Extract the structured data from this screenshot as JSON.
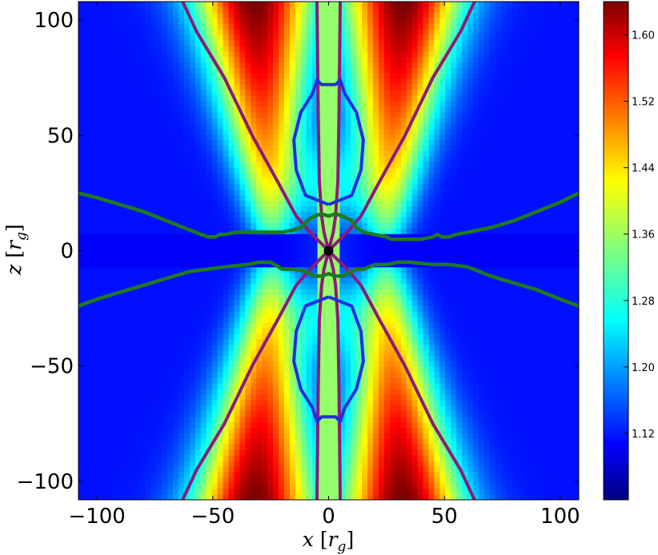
{
  "chart_data": {
    "type": "heatmap",
    "title": "",
    "xlabel": "x [r_g]",
    "ylabel": "z [r_g]",
    "xlabel_main": "x",
    "xlabel_unit": "r",
    "xlabel_sub": "g",
    "ylabel_main": "z",
    "ylabel_unit": "r",
    "ylabel_sub": "g",
    "xlim": [
      -108,
      108
    ],
    "ylim": [
      -108,
      108
    ],
    "x_ticks": [
      -100,
      -50,
      0,
      50,
      100
    ],
    "y_ticks": [
      -100,
      -50,
      0,
      50,
      100
    ],
    "x_tick_labels": [
      "−100",
      "−50",
      "0",
      "50",
      "100"
    ],
    "y_tick_labels": [
      "−100",
      "−50",
      "0",
      "50",
      "100"
    ],
    "colormap": "jet",
    "colorbar": {
      "range": [
        1.04,
        1.64
      ],
      "ticks": [
        1.12,
        1.2,
        1.28,
        1.36,
        1.44,
        1.52,
        1.6
      ],
      "tick_labels": [
        "1.12",
        "1.20",
        "1.28",
        "1.36",
        "1.44",
        "1.52",
        "1.60"
      ]
    },
    "grid": false,
    "black_hole": {
      "x": 0,
      "z": 0
    },
    "colors": {
      "purple_contours": "#8b1c7a",
      "blue_contour": "#1f2fe0",
      "green_contour": "#1e7a1e",
      "black_hole": "#000000"
    },
    "contours": {
      "purple_inner_right": [
        [
          0,
          0
        ],
        [
          2,
          8
        ],
        [
          3,
          15
        ],
        [
          4,
          30
        ],
        [
          4.5,
          60
        ],
        [
          5,
          108
        ]
      ],
      "purple_outer_right": [
        [
          0,
          0
        ],
        [
          3,
          3
        ],
        [
          8,
          8
        ],
        [
          14,
          15
        ],
        [
          22,
          30
        ],
        [
          33,
          50
        ],
        [
          45,
          75
        ],
        [
          57,
          95
        ],
        [
          63,
          108
        ]
      ],
      "blue_lobe_right": [
        [
          0,
          20
        ],
        [
          10,
          24
        ],
        [
          14,
          35
        ],
        [
          15,
          48
        ],
        [
          12,
          60
        ],
        [
          7,
          68
        ],
        [
          5,
          74
        ],
        [
          3,
          72
        ],
        [
          0,
          72
        ]
      ],
      "green_upper_right": [
        [
          0,
          15
        ],
        [
          3,
          16
        ],
        [
          6,
          15
        ],
        [
          8,
          14
        ],
        [
          10,
          13
        ],
        [
          12,
          10
        ],
        [
          15,
          8
        ],
        [
          20,
          7
        ],
        [
          25,
          6
        ],
        [
          27,
          5
        ],
        [
          30,
          5
        ],
        [
          35,
          5
        ],
        [
          40,
          5
        ],
        [
          45,
          6
        ],
        [
          47,
          7
        ],
        [
          49,
          6
        ],
        [
          52,
          6
        ],
        [
          55,
          7
        ],
        [
          60,
          8
        ],
        [
          65,
          9
        ],
        [
          70,
          10
        ],
        [
          80,
          13
        ],
        [
          90,
          17
        ],
        [
          100,
          21
        ],
        [
          108,
          25
        ]
      ],
      "green_upper_left": [
        [
          0,
          15
        ],
        [
          -3,
          16
        ],
        [
          -6,
          15
        ],
        [
          -8,
          14
        ],
        [
          -10,
          12
        ],
        [
          -12,
          10
        ],
        [
          -15,
          9
        ],
        [
          -20,
          8
        ],
        [
          -25,
          8
        ],
        [
          -30,
          8
        ],
        [
          -35,
          8
        ],
        [
          -40,
          8
        ],
        [
          -45,
          7
        ],
        [
          -47,
          7
        ],
        [
          -49,
          6
        ],
        [
          -52,
          6
        ],
        [
          -55,
          7
        ],
        [
          -60,
          9
        ],
        [
          -65,
          11
        ],
        [
          -70,
          13
        ],
        [
          -80,
          17
        ],
        [
          -90,
          20
        ],
        [
          -100,
          23
        ],
        [
          -108,
          25
        ]
      ],
      "green_lower_right": [
        [
          0,
          -10
        ],
        [
          3,
          -11
        ],
        [
          6,
          -11
        ],
        [
          8,
          -10
        ],
        [
          10,
          -9
        ],
        [
          12,
          -8
        ],
        [
          15,
          -8
        ],
        [
          20,
          -6
        ],
        [
          25,
          -6
        ],
        [
          30,
          -5
        ],
        [
          35,
          -5
        ],
        [
          45,
          -6
        ],
        [
          52,
          -6
        ],
        [
          60,
          -7
        ],
        [
          70,
          -11
        ],
        [
          80,
          -14
        ],
        [
          90,
          -17
        ],
        [
          100,
          -21
        ],
        [
          108,
          -24
        ]
      ],
      "green_lower_left": [
        [
          0,
          -10
        ],
        [
          -3,
          -11
        ],
        [
          -6,
          -11
        ],
        [
          -8,
          -10
        ],
        [
          -10,
          -9
        ],
        [
          -15,
          -8
        ],
        [
          -20,
          -8
        ],
        [
          -25,
          -5
        ],
        [
          -27,
          -5
        ],
        [
          -30,
          -5
        ],
        [
          -35,
          -6
        ],
        [
          -45,
          -7
        ],
        [
          -52,
          -8
        ],
        [
          -60,
          -9
        ],
        [
          -70,
          -12
        ],
        [
          -80,
          -15
        ],
        [
          -90,
          -18
        ],
        [
          -100,
          -21
        ],
        [
          -108,
          -24
        ]
      ]
    }
  }
}
